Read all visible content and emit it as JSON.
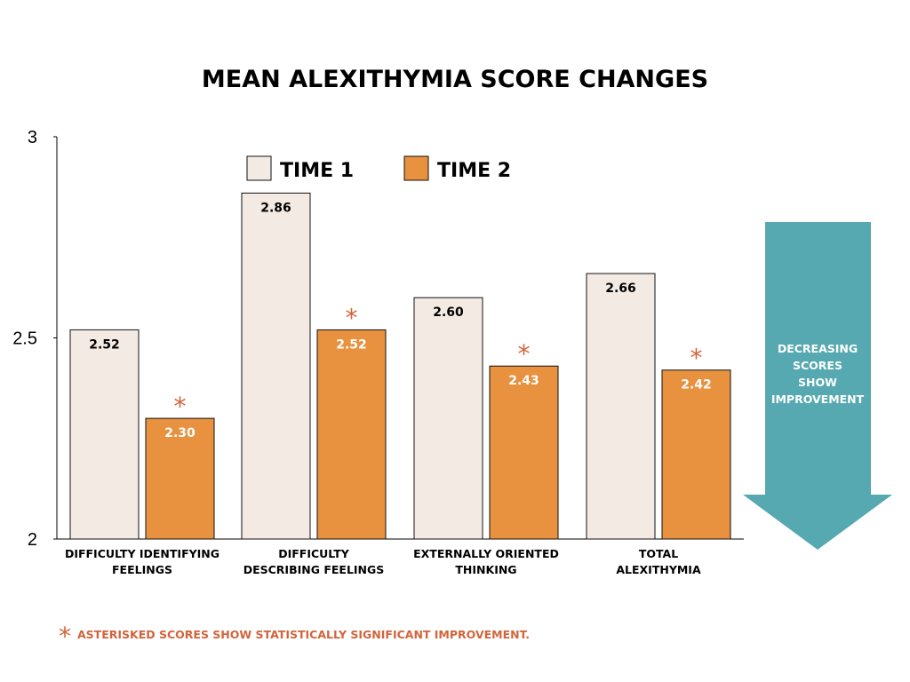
{
  "colors": {
    "time1": "#f3ebe3",
    "time2": "#e8913f",
    "outline": "#111111",
    "star": "#d2643c",
    "arrow": "#56a8b1",
    "footnote": "#d2643c",
    "text": "#000000"
  },
  "chart_data": {
    "type": "bar",
    "title": "MEAN ALEXITHYMIA SCORE CHANGES",
    "categories": [
      [
        "DIFFICULTY IDENTIFYING",
        "FEELINGS"
      ],
      [
        "DIFFICULTY",
        "DESCRIBING FEELINGS"
      ],
      [
        "EXTERNALLY ORIENTED",
        "THINKING"
      ],
      [
        "TOTAL",
        "ALEXITHYMIA"
      ]
    ],
    "series": [
      {
        "name": "TIME 1",
        "values": [
          2.52,
          2.86,
          2.6,
          2.66
        ],
        "labels": [
          "2.52",
          "2.86",
          "2.60",
          "2.66"
        ],
        "significant": [
          false,
          false,
          false,
          false
        ]
      },
      {
        "name": "TIME 2",
        "values": [
          2.3,
          2.52,
          2.43,
          2.42
        ],
        "labels": [
          "2.30",
          "2.52",
          "2.43",
          "2.42"
        ],
        "significant": [
          true,
          true,
          true,
          true
        ]
      }
    ],
    "ylim": [
      2,
      3
    ],
    "yticks": [
      "2",
      "2.5",
      "3"
    ],
    "ytick_values": [
      2,
      2.5,
      3
    ],
    "legend_position": "top",
    "grid": false,
    "significance_marker": "*"
  },
  "arrow_note": {
    "lines": [
      "DECREASING",
      "SCORES",
      "SHOW",
      "IMPROVEMENT"
    ],
    "icon": "down-arrow-icon"
  },
  "footnote": {
    "marker": "*",
    "text": "ASTERISKED SCORES SHOW STATISTICALLY SIGNIFICANT IMPROVEMENT."
  }
}
